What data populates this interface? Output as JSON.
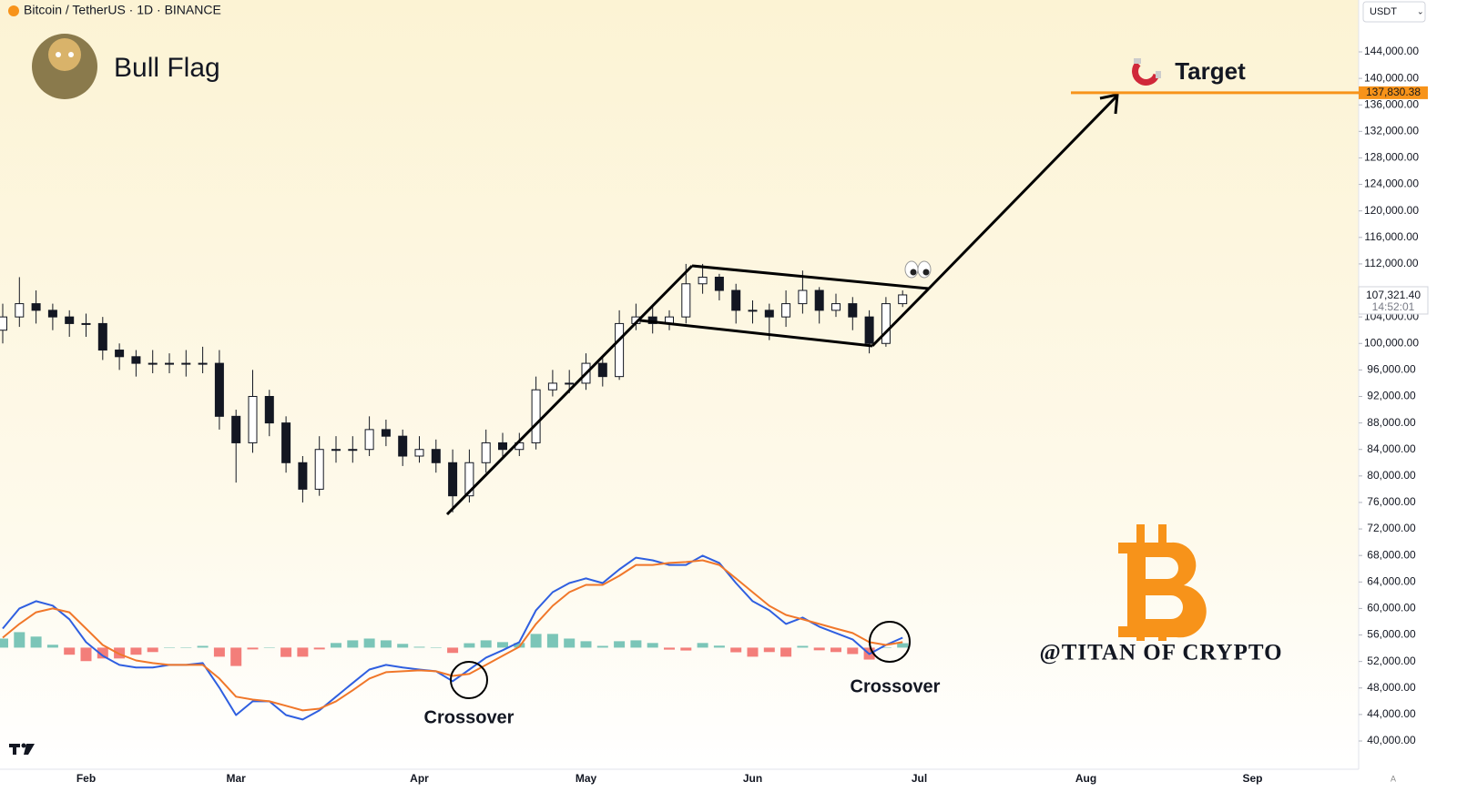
{
  "header": {
    "symbol": "Bitcoin / TetherUS · 1D · BINANCE",
    "currency": "USDT"
  },
  "watermark": "@TITAN OF CRYPTO",
  "chart_data": [
    {
      "type": "candlestick",
      "title": "Bull Flag",
      "categories": [
        null,
        null,
        null,
        null,
        null,
        "Feb",
        null,
        null,
        null,
        null,
        null,
        null,
        null,
        null,
        "Mar",
        null,
        null,
        null,
        null,
        null,
        null,
        null,
        null,
        null,
        null,
        "Apr",
        null,
        null,
        null,
        null,
        null,
        null,
        null,
        null,
        null,
        "May",
        null,
        null,
        null,
        null,
        null,
        null,
        null,
        null,
        null,
        "Jun",
        null,
        null,
        null,
        null,
        null,
        null,
        null,
        null,
        null,
        "Jul",
        null,
        null,
        null,
        null,
        null,
        null,
        null,
        null,
        null,
        "Aug",
        null,
        null,
        null,
        null,
        null,
        null,
        null,
        null,
        null,
        "Sep",
        null,
        null,
        null,
        null,
        null
      ],
      "open": [
        102000,
        104000,
        106000,
        105000,
        104000,
        103000,
        103000,
        99000,
        98000,
        97000,
        97000,
        97000,
        97000,
        97000,
        89000,
        85000,
        92000,
        88000,
        82000,
        78000,
        84000,
        84000,
        84000,
        87000,
        86000,
        83000,
        84000,
        82000,
        77000,
        82000,
        85000,
        84000,
        85000,
        93000,
        94000,
        94000,
        97000,
        95000,
        103000,
        104000,
        103000,
        104000,
        109000,
        110000,
        108000,
        105000,
        105000,
        104000,
        106000,
        108000,
        105000,
        106000,
        104000,
        100000,
        106000,
        null,
        null,
        null,
        null,
        null,
        null,
        null,
        null,
        null,
        null,
        null,
        null,
        null,
        null,
        null,
        null,
        null,
        null,
        null,
        null,
        null,
        null,
        null,
        null,
        null,
        null
      ],
      "high": [
        106000,
        110000,
        108000,
        106000,
        105000,
        104500,
        104000,
        100000,
        99000,
        99000,
        98500,
        99000,
        99500,
        99000,
        90000,
        96000,
        93000,
        89000,
        83000,
        86000,
        86000,
        86000,
        89000,
        88500,
        87000,
        86000,
        85500,
        84000,
        84000,
        87000,
        86500,
        86500,
        95000,
        96000,
        96000,
        98500,
        98000,
        105000,
        106000,
        105500,
        105000,
        112000,
        112000,
        110500,
        109000,
        106500,
        106000,
        108000,
        111000,
        108500,
        107500,
        107000,
        105000,
        107000,
        108000,
        null,
        null,
        null,
        null,
        null,
        null,
        null,
        null,
        null,
        null,
        null,
        null,
        null,
        null,
        null,
        null,
        null,
        null,
        null,
        null,
        null,
        null,
        null,
        null,
        null,
        null
      ],
      "low": [
        100000,
        102500,
        103000,
        102000,
        101000,
        101000,
        97500,
        96000,
        95000,
        95500,
        95500,
        95000,
        95500,
        87000,
        79000,
        83500,
        86000,
        80500,
        76000,
        77000,
        82000,
        82000,
        83000,
        84500,
        81500,
        82000,
        80500,
        74500,
        76000,
        80500,
        82500,
        83000,
        84000,
        92000,
        92500,
        93000,
        93500,
        94500,
        102000,
        101500,
        102000,
        103000,
        107500,
        106500,
        103000,
        103000,
        100500,
        102500,
        104500,
        103000,
        104000,
        102000,
        98500,
        99500,
        105500,
        null,
        null,
        null,
        null,
        null,
        null,
        null,
        null,
        null,
        null,
        null,
        null,
        null,
        null,
        null,
        null,
        null,
        null,
        null,
        null,
        null,
        null,
        null,
        null,
        null,
        null
      ],
      "close": [
        104000,
        106000,
        105000,
        104000,
        103000,
        103000,
        99000,
        98000,
        97000,
        97000,
        97000,
        97000,
        97000,
        89000,
        85000,
        92000,
        88000,
        82000,
        78000,
        84000,
        84000,
        84000,
        87000,
        86000,
        83000,
        84000,
        82000,
        77000,
        82000,
        85000,
        84000,
        85000,
        93000,
        94000,
        94000,
        97000,
        95000,
        103000,
        104000,
        103000,
        104000,
        109000,
        110000,
        108000,
        105000,
        105000,
        104000,
        106000,
        108000,
        105000,
        106000,
        104000,
        100000,
        106000,
        107321.4,
        null,
        null,
        null,
        null,
        null,
        null,
        null,
        null,
        null,
        null,
        null,
        null,
        null,
        null,
        null,
        null,
        null,
        null,
        null,
        null,
        null,
        null,
        null,
        null,
        null,
        null
      ],
      "colors": {
        "up": "#ffffff",
        "down": "#131722",
        "target": "#f7931a"
      },
      "ylim": [
        35740,
        151830
      ],
      "yticks": [
        {
          "value": 40000,
          "label": "40,000.00"
        },
        {
          "value": 44000,
          "label": "44,000.00"
        },
        {
          "value": 48000,
          "label": "48,000.00"
        },
        {
          "value": 52000,
          "label": "52,000.00"
        },
        {
          "value": 56000,
          "label": "56,000.00"
        },
        {
          "value": 60000,
          "label": "60,000.00"
        },
        {
          "value": 64000,
          "label": "64,000.00"
        },
        {
          "value": 68000,
          "label": "68,000.00"
        },
        {
          "value": 72000,
          "label": "72,000.00"
        },
        {
          "value": 76000,
          "label": "76,000.00"
        },
        {
          "value": 80000,
          "label": "80,000.00"
        },
        {
          "value": 84000,
          "label": "84,000.00"
        },
        {
          "value": 88000,
          "label": "88,000.00"
        },
        {
          "value": 92000,
          "label": "92,000.00"
        },
        {
          "value": 96000,
          "label": "96,000.00"
        },
        {
          "value": 100000,
          "label": "100,000.00"
        },
        {
          "value": 104000,
          "label": "104,000.00"
        },
        {
          "value": 112000,
          "label": "112,000.00"
        },
        {
          "value": 116000,
          "label": "116,000.00"
        },
        {
          "value": 120000,
          "label": "120,000.00"
        },
        {
          "value": 124000,
          "label": "124,000.00"
        },
        {
          "value": 128000,
          "label": "128,000.00"
        },
        {
          "value": 132000,
          "label": "132,000.00"
        },
        {
          "value": 136000,
          "label": "136,000.00"
        },
        {
          "value": 140000,
          "label": "140,000.00"
        },
        {
          "value": 144000,
          "label": "144,000.00"
        }
      ],
      "grid": false,
      "target": {
        "text": "Target",
        "price": {
          "value": 137830.38,
          "label": "137,830.38"
        }
      },
      "last_price": {
        "value": 107321.4,
        "label": "107,321.40"
      },
      "countdown": "14:52:01"
    },
    {
      "type": "macd",
      "ylim": [
        -5500,
        5000
      ],
      "series": [
        {
          "color": "#2f5fe0",
          "values": [
            860,
            1770,
            2100,
            1900,
            1280,
            250,
            -370,
            -780,
            -900,
            -900,
            -780,
            -780,
            -700,
            -1810,
            -3050,
            -2430,
            -2430,
            -3050,
            -3250,
            -2840,
            -2220,
            -1600,
            -990,
            -780,
            -900,
            -990,
            -1070,
            -1520,
            -990,
            -450,
            -120,
            250,
            1690,
            2510,
            2920,
            3130,
            2920,
            3540,
            4070,
            3950,
            3740,
            3740,
            4160,
            3830,
            2920,
            2100,
            1690,
            1070,
            1360,
            950,
            660,
            370,
            -290,
            120,
            450,
            null,
            null,
            null,
            null,
            null,
            null,
            null,
            null,
            null,
            null,
            null,
            null,
            null,
            null,
            null,
            null,
            null,
            null,
            null,
            null,
            null,
            null,
            null,
            null,
            null,
            null
          ]
        },
        {
          "color": "#f0772a",
          "values": [
            450,
            1070,
            1600,
            1770,
            1600,
            860,
            120,
            -290,
            -580,
            -700,
            -780,
            -780,
            -780,
            -1400,
            -2220,
            -2350,
            -2430,
            -2630,
            -2840,
            -2760,
            -2430,
            -1930,
            -1400,
            -1110,
            -1070,
            -1030,
            -1070,
            -1280,
            -1190,
            -780,
            -370,
            40,
            1070,
            1890,
            2510,
            2840,
            2840,
            3250,
            3740,
            3740,
            3830,
            3870,
            3950,
            3740,
            3130,
            2510,
            1890,
            1480,
            1280,
            1070,
            860,
            660,
            250,
            120,
            250,
            null,
            null,
            null,
            null,
            null,
            null,
            null,
            null,
            null,
            null,
            null,
            null,
            null,
            null,
            null,
            null,
            null,
            null,
            null,
            null,
            null,
            null,
            null,
            null,
            null,
            null
          ]
        }
      ],
      "histogram": {
        "colors": {
          "positive": "#4fb3a3",
          "negative": "#ef5350"
        },
        "values": [
          410,
          700,
          500,
          130,
          -320,
          -610,
          -490,
          -490,
          -320,
          -200,
          0,
          0,
          80,
          -410,
          -830,
          -80,
          0,
          -420,
          -410,
          -80,
          210,
          330,
          410,
          330,
          170,
          40,
          0,
          -240,
          200,
          330,
          250,
          210,
          620,
          620,
          410,
          290,
          80,
          290,
          330,
          210,
          -90,
          -130,
          210,
          90,
          -210,
          -410,
          -200,
          -410,
          80,
          -120,
          -200,
          -290,
          -540,
          0,
          200,
          null,
          null,
          null,
          null,
          null,
          null,
          null,
          null,
          null,
          null,
          null,
          null,
          null,
          null,
          null,
          null,
          null,
          null,
          null,
          null,
          null,
          null,
          null,
          null,
          null,
          null
        ]
      },
      "annotations": [
        "Crossover",
        "Crossover"
      ]
    }
  ]
}
